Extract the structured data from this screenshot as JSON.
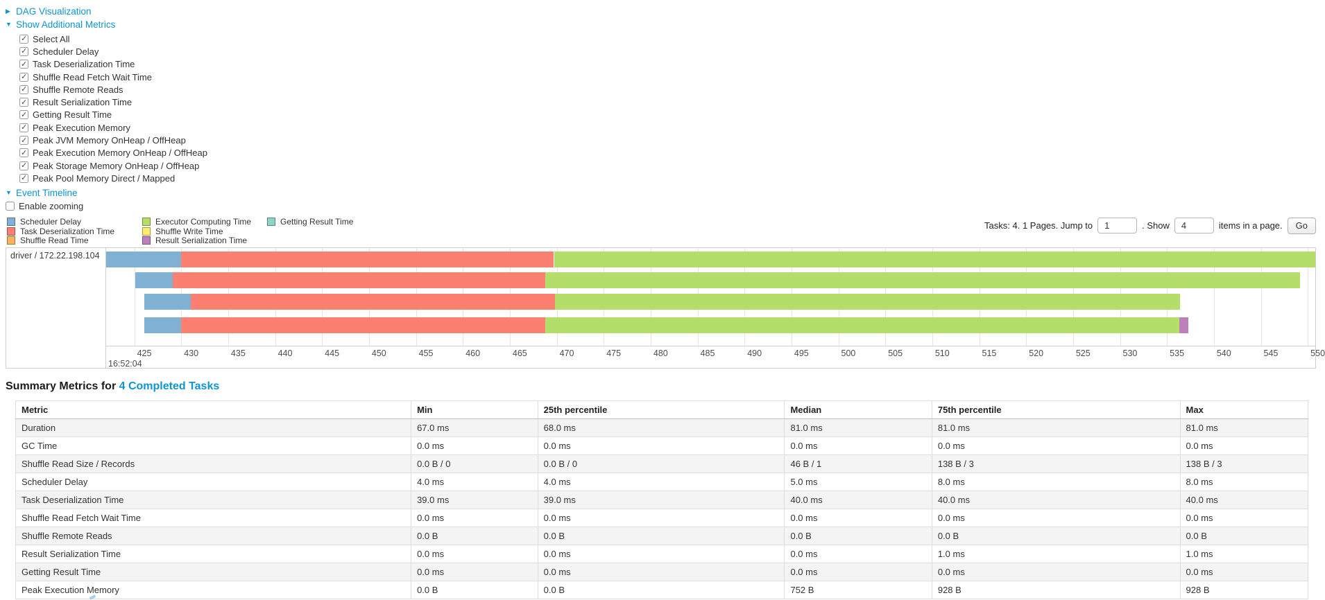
{
  "sections": {
    "dag": {
      "label": "DAG Visualization",
      "collapsed": true
    },
    "additional_metrics": {
      "label": "Show Additional Metrics",
      "collapsed": false,
      "checkboxes": [
        {
          "label": "Select All",
          "checked": true
        },
        {
          "label": "Scheduler Delay",
          "checked": true
        },
        {
          "label": "Task Deserialization Time",
          "checked": true
        },
        {
          "label": "Shuffle Read Fetch Wait Time",
          "checked": true
        },
        {
          "label": "Shuffle Remote Reads",
          "checked": true
        },
        {
          "label": "Result Serialization Time",
          "checked": true
        },
        {
          "label": "Getting Result Time",
          "checked": true
        },
        {
          "label": "Peak Execution Memory",
          "checked": true
        },
        {
          "label": "Peak JVM Memory OnHeap / OffHeap",
          "checked": true
        },
        {
          "label": "Peak Execution Memory OnHeap / OffHeap",
          "checked": true
        },
        {
          "label": "Peak Storage Memory OnHeap / OffHeap",
          "checked": true
        },
        {
          "label": "Peak Pool Memory Direct / Mapped",
          "checked": true
        }
      ]
    },
    "event_timeline": {
      "label": "Event Timeline",
      "collapsed": false,
      "enable_zooming_label": "Enable zooming",
      "enable_zooming_checked": false
    }
  },
  "pagination": {
    "summary_text": "Tasks: 4. 1 Pages. Jump to",
    "jump_value": "1",
    "show_label": ". Show",
    "page_size_value": "4",
    "suffix_text": "items in a page.",
    "go_label": "Go"
  },
  "chart_data": {
    "type": "timeline-gantt",
    "executor_label": "driver / 172.22.198.104",
    "x_domain": [
      422.0,
      550.8
    ],
    "x_ticks": [
      425,
      430,
      435,
      440,
      445,
      450,
      455,
      460,
      465,
      470,
      475,
      480,
      485,
      490,
      495,
      500,
      505,
      510,
      515,
      520,
      525,
      530,
      535,
      540,
      545,
      550
    ],
    "x_start_time": "16:52:04",
    "x_unit": "ms after 16:52:04",
    "colors": {
      "scheduler_delay": "#80B1D3",
      "task_deserialization": "#FB8072",
      "shuffle_read": "#FDB462",
      "executor_computing": "#B3DE69",
      "shuffle_write": "#FFED6F",
      "result_serialization": "#BC80BD",
      "getting_result": "#8DD3C7"
    },
    "legend_columns": [
      [
        {
          "key": "scheduler_delay",
          "label": "Scheduler Delay"
        },
        {
          "key": "task_deserialization",
          "label": "Task Deserialization Time"
        },
        {
          "key": "shuffle_read",
          "label": "Shuffle Read Time"
        }
      ],
      [
        {
          "key": "executor_computing",
          "label": "Executor Computing Time"
        },
        {
          "key": "shuffle_write",
          "label": "Shuffle Write Time"
        },
        {
          "key": "result_serialization",
          "label": "Result Serialization Time"
        }
      ],
      [
        {
          "key": "getting_result",
          "label": "Getting Result Time"
        }
      ]
    ],
    "tasks": [
      {
        "segments": [
          {
            "name": "scheduler_delay",
            "start": 422.0,
            "end": 430.0
          },
          {
            "name": "task_deserialization",
            "start": 430.0,
            "end": 469.7
          },
          {
            "name": "executor_computing",
            "start": 469.7,
            "end": 550.8
          }
        ]
      },
      {
        "segments": [
          {
            "name": "scheduler_delay",
            "start": 425.1,
            "end": 429.1
          },
          {
            "name": "task_deserialization",
            "start": 429.1,
            "end": 468.8
          },
          {
            "name": "executor_computing",
            "start": 468.8,
            "end": 549.2
          }
        ]
      },
      {
        "segments": [
          {
            "name": "scheduler_delay",
            "start": 426.1,
            "end": 431.0
          },
          {
            "name": "task_deserialization",
            "start": 431.0,
            "end": 469.8
          },
          {
            "name": "executor_computing",
            "start": 469.8,
            "end": 536.4
          }
        ]
      },
      {
        "segments": [
          {
            "name": "scheduler_delay",
            "start": 426.1,
            "end": 430.0
          },
          {
            "name": "task_deserialization",
            "start": 430.0,
            "end": 468.8
          },
          {
            "name": "executor_computing",
            "start": 468.8,
            "end": 536.3
          },
          {
            "name": "result_serialization",
            "start": 536.3,
            "end": 537.3
          }
        ]
      }
    ]
  },
  "summary": {
    "title_prefix": "Summary Metrics for ",
    "title_link": "4 Completed Tasks",
    "table": {
      "headers": [
        "Metric",
        "Min",
        "25th percentile",
        "Median",
        "75th percentile",
        "Max"
      ],
      "col_widths_pct": [
        30.6,
        9.8,
        19.1,
        11.4,
        19.2,
        9.9
      ],
      "rows": [
        [
          "Duration",
          "67.0 ms",
          "68.0 ms",
          "81.0 ms",
          "81.0 ms",
          "81.0 ms"
        ],
        [
          "GC Time",
          "0.0 ms",
          "0.0 ms",
          "0.0 ms",
          "0.0 ms",
          "0.0 ms"
        ],
        [
          "Shuffle Read Size / Records",
          "0.0 B / 0",
          "0.0 B / 0",
          "46 B / 1",
          "138 B / 3",
          "138 B / 3"
        ],
        [
          "Scheduler Delay",
          "4.0 ms",
          "4.0 ms",
          "5.0 ms",
          "8.0 ms",
          "8.0 ms"
        ],
        [
          "Task Deserialization Time",
          "39.0 ms",
          "39.0 ms",
          "40.0 ms",
          "40.0 ms",
          "40.0 ms"
        ],
        [
          "Shuffle Read Fetch Wait Time",
          "0.0 ms",
          "0.0 ms",
          "0.0 ms",
          "0.0 ms",
          "0.0 ms"
        ],
        [
          "Shuffle Remote Reads",
          "0.0 B",
          "0.0 B",
          "0.0 B",
          "0.0 B",
          "0.0 B"
        ],
        [
          "Result Serialization Time",
          "0.0 ms",
          "0.0 ms",
          "0.0 ms",
          "1.0 ms",
          "1.0 ms"
        ],
        [
          "Getting Result Time",
          "0.0 ms",
          "0.0 ms",
          "0.0 ms",
          "0.0 ms",
          "0.0 ms"
        ],
        [
          "Peak Execution Memory",
          "0.0 B",
          "0.0 B",
          "752 B",
          "928 B",
          "928 B"
        ]
      ]
    }
  }
}
